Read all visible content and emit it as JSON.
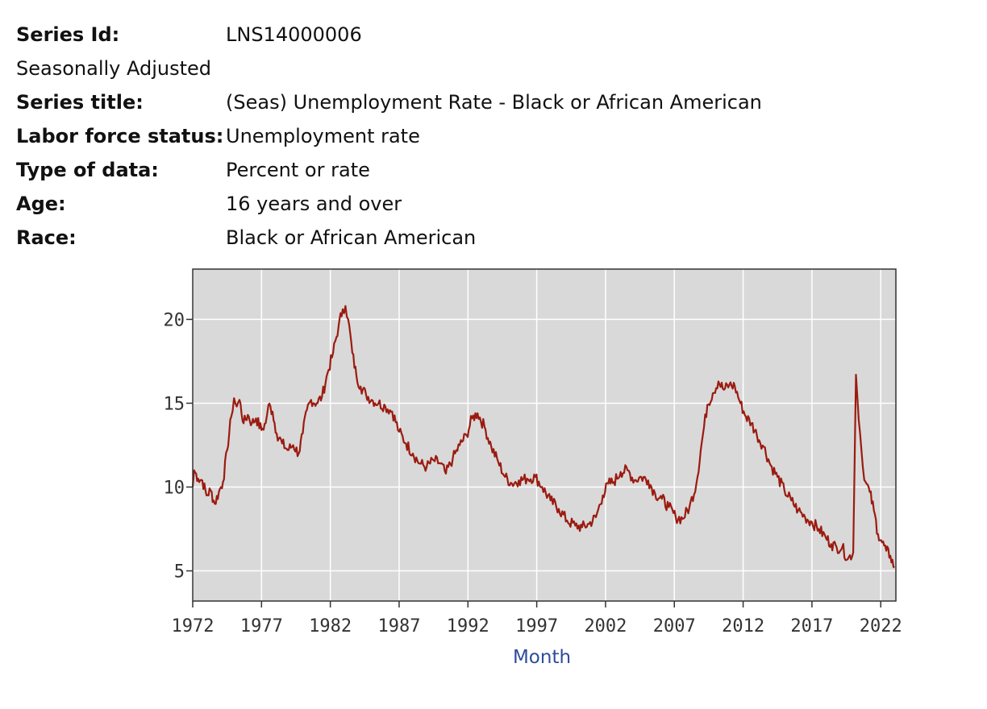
{
  "series_info": [
    {
      "label": "Series Id:",
      "value": "LNS14000006",
      "bold": true
    },
    {
      "label": "Seasonally Adjusted",
      "value": "",
      "bold": false
    },
    {
      "label": "Series title:",
      "value": "(Seas) Unemployment Rate - Black or African American",
      "bold": true
    },
    {
      "label": "Labor force status:",
      "value": "Unemployment rate",
      "bold": true
    },
    {
      "label": "Type of data:",
      "value": "Percent or rate",
      "bold": true
    },
    {
      "label": "Age:",
      "value": "16 years and over",
      "bold": true
    },
    {
      "label": "Race:",
      "value": "Black or African American",
      "bold": true
    }
  ],
  "chart_data": {
    "type": "line",
    "xlabel": "Month",
    "ylabel": "",
    "xlim": [
      1972.0,
      2023.1
    ],
    "ylim": [
      3.2,
      23.0
    ],
    "x_ticks": [
      1972,
      1977,
      1982,
      1987,
      1992,
      1997,
      2002,
      2007,
      2012,
      2017,
      2022
    ],
    "y_ticks": [
      5,
      10,
      15,
      20
    ],
    "grid": true,
    "colors": {
      "line": "#9b1b10",
      "plot_bg": "#d9d9d9",
      "grid": "#ffffff",
      "axis_title": "#2e4c9a"
    },
    "series": [
      {
        "x": [
          1972.0,
          1972.1,
          1972.4,
          1972.7,
          1973.0,
          1973.3,
          1973.6,
          1973.9,
          1974.2,
          1974.5,
          1974.8,
          1975.0,
          1975.2,
          1975.4,
          1975.7,
          1976.0,
          1976.3,
          1976.6,
          1977.0,
          1977.3,
          1977.5,
          1977.8,
          1978.1,
          1978.5,
          1978.9,
          1979.3,
          1979.7,
          1980.0,
          1980.3,
          1980.6,
          1981.0,
          1981.4,
          1981.8,
          1982.2,
          1982.6,
          1982.9,
          1983.1,
          1983.3,
          1983.6,
          1983.9,
          1984.2,
          1984.6,
          1985.0,
          1985.5,
          1986.0,
          1986.5,
          1987.0,
          1987.5,
          1988.0,
          1988.5,
          1989.0,
          1989.5,
          1990.0,
          1990.4,
          1990.9,
          1991.4,
          1991.9,
          1992.3,
          1992.7,
          1993.2,
          1993.7,
          1994.2,
          1994.7,
          1995.2,
          1995.7,
          1996.3,
          1996.9,
          1997.4,
          1998.0,
          1998.6,
          1999.2,
          1999.8,
          2000.3,
          2000.8,
          2001.3,
          2001.8,
          2002.2,
          2002.6,
          2003.1,
          2003.6,
          2004.1,
          2004.6,
          2005.1,
          2005.6,
          2006.1,
          2006.6,
          2007.1,
          2007.6,
          2008.1,
          2008.6,
          2009.0,
          2009.4,
          2009.8,
          2010.2,
          2010.6,
          2011.0,
          2011.4,
          2011.8,
          2012.2,
          2012.6,
          2013.0,
          2013.5,
          2014.0,
          2014.5,
          2015.0,
          2015.5,
          2016.0,
          2016.5,
          2017.0,
          2017.5,
          2018.0,
          2018.4,
          2018.8,
          2019.2,
          2019.6,
          2020.0,
          2020.2,
          2020.3,
          2020.5,
          2020.7,
          2020.9,
          2021.2,
          2021.5,
          2021.8,
          2022.1,
          2022.4,
          2022.7,
          2023.0
        ],
        "y": [
          10.0,
          11.0,
          10.5,
          10.4,
          9.5,
          9.8,
          9.0,
          9.7,
          10.3,
          12.2,
          14.2,
          15.3,
          14.8,
          15.2,
          13.8,
          14.3,
          13.8,
          14.1,
          13.4,
          13.8,
          14.9,
          14.5,
          13.2,
          12.6,
          12.2,
          12.5,
          12.0,
          13.2,
          14.6,
          15.2,
          15.0,
          15.4,
          16.8,
          18.0,
          19.6,
          20.6,
          20.8,
          20.0,
          18.0,
          16.6,
          16.0,
          15.5,
          15.2,
          15.0,
          14.8,
          14.5,
          13.3,
          12.6,
          12.0,
          11.4,
          11.2,
          11.6,
          11.4,
          10.8,
          11.7,
          12.5,
          13.1,
          14.1,
          14.4,
          13.6,
          12.4,
          11.5,
          10.6,
          10.2,
          10.4,
          10.5,
          10.6,
          10.0,
          9.2,
          8.7,
          8.0,
          7.7,
          7.6,
          7.8,
          8.2,
          9.5,
          10.2,
          10.3,
          10.9,
          11.0,
          10.4,
          10.6,
          10.4,
          9.6,
          9.3,
          8.8,
          8.2,
          8.1,
          8.8,
          10.2,
          12.7,
          14.9,
          15.6,
          16.3,
          15.8,
          16.1,
          16.0,
          15.0,
          14.2,
          13.8,
          13.1,
          12.4,
          11.3,
          10.6,
          9.8,
          9.2,
          8.6,
          8.2,
          7.9,
          7.5,
          7.0,
          6.6,
          6.4,
          6.4,
          5.7,
          6.1,
          16.7,
          15.4,
          13.2,
          11.2,
          10.3,
          9.7,
          8.6,
          7.2,
          6.7,
          6.2,
          5.9,
          5.2
        ]
      }
    ]
  }
}
